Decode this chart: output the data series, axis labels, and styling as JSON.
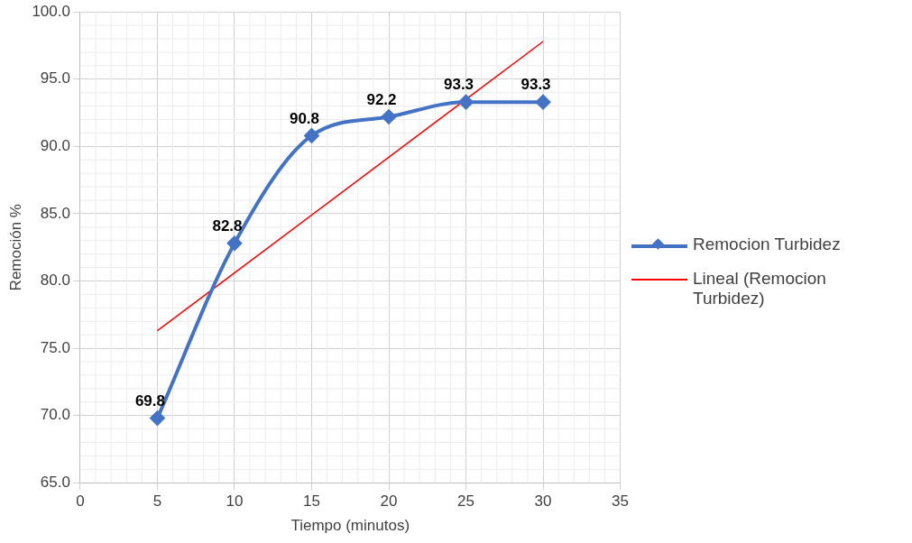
{
  "chart_data": {
    "type": "line",
    "xlabel": "Tiempo (minutos)",
    "ylabel": "Remoción %",
    "x": [
      5,
      10,
      15,
      20,
      25,
      30
    ],
    "series": [
      {
        "name": "Remocion Turbidez",
        "color": "#4472c4",
        "values": [
          69.8,
          82.8,
          90.8,
          92.2,
          93.3,
          93.3
        ],
        "value_labels": [
          "69.8",
          "82.8",
          "90.8",
          "92.2",
          "93.3",
          "93.3"
        ],
        "marker": "diamond"
      },
      {
        "name": "Lineal (Remocion Turbidez)",
        "type": "line",
        "color": "#ff0000",
        "x": [
          5,
          30
        ],
        "values": [
          76.3,
          97.8
        ],
        "marker": "none"
      }
    ],
    "xlim": [
      0,
      35
    ],
    "xticks": [
      0,
      5,
      10,
      15,
      20,
      25,
      30,
      35
    ],
    "ylim": [
      65,
      100
    ],
    "yticks": [
      {
        "value": 65,
        "label": "65.0"
      },
      {
        "value": 70,
        "label": "70.0"
      },
      {
        "value": 75,
        "label": "75.0"
      },
      {
        "value": 80,
        "label": "80.0"
      },
      {
        "value": 85,
        "label": "85.0"
      },
      {
        "value": 90,
        "label": "90.0"
      },
      {
        "value": 95,
        "label": "95.0"
      },
      {
        "value": 100,
        "label": "100.0"
      }
    ],
    "grid": true,
    "legend": "right"
  }
}
